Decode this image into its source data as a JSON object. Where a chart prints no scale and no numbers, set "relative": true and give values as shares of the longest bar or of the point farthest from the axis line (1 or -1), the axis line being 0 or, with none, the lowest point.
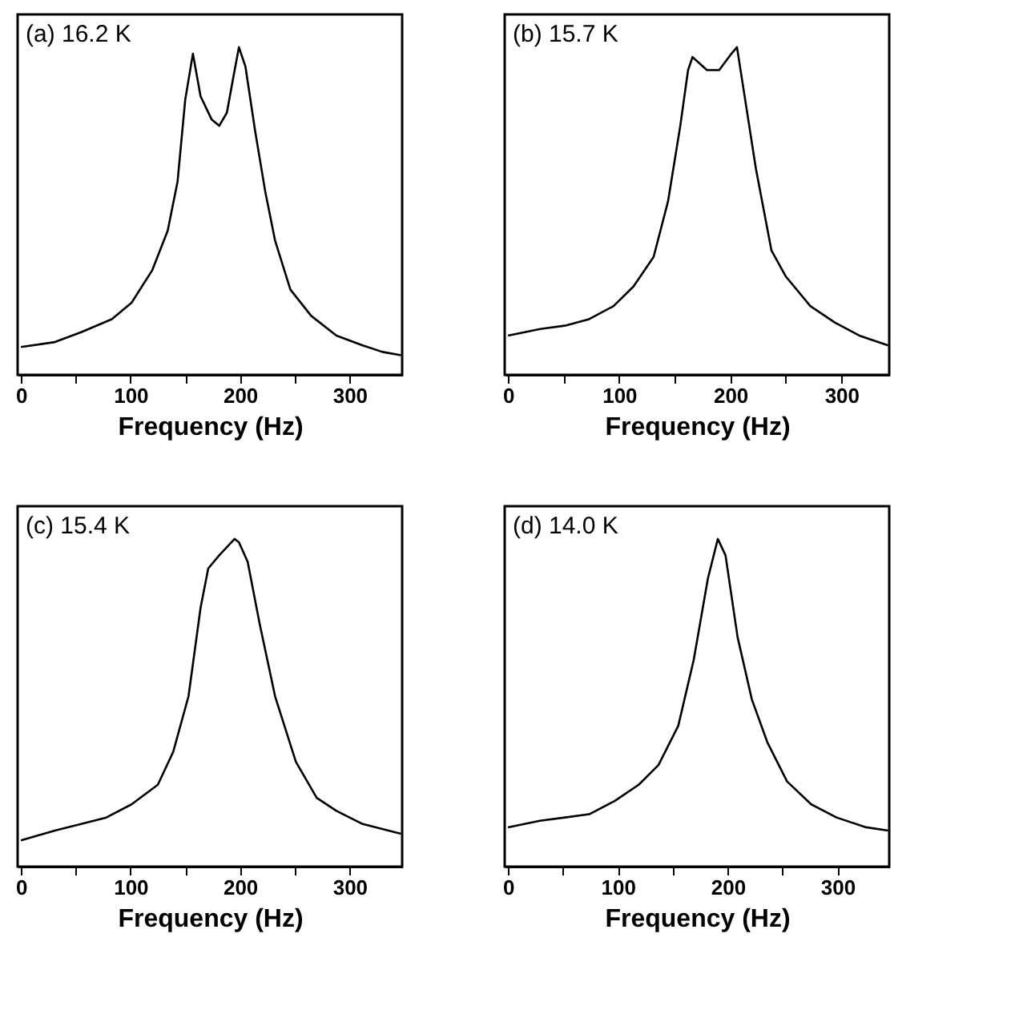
{
  "chart_data": [
    {
      "type": "line",
      "title": "(a) 16.2 K",
      "xlabel": "Frequency (Hz)",
      "relative": true,
      "grid": false,
      "xlim": [
        -3,
        348
      ],
      "xticks": [
        0,
        {
          "value": 50,
          "label": null
        },
        100,
        {
          "value": 150,
          "label": null
        },
        200,
        {
          "value": 250,
          "label": null
        },
        300
      ],
      "x": [
        0,
        31,
        55,
        83,
        101,
        120,
        134,
        143,
        150,
        157,
        164,
        174,
        181,
        188,
        194,
        199,
        205,
        214,
        223,
        232,
        246,
        265,
        288,
        312,
        330,
        347
      ],
      "series": [
        {
          "color": "#000000",
          "values": [
            0.085,
            0.1,
            0.13,
            0.17,
            0.22,
            0.32,
            0.44,
            0.59,
            0.84,
            0.98,
            0.85,
            0.78,
            0.76,
            0.8,
            0.91,
            1.0,
            0.94,
            0.74,
            0.56,
            0.41,
            0.26,
            0.18,
            0.12,
            0.09,
            0.07,
            0.06
          ]
        }
      ]
    },
    {
      "type": "line",
      "title": "(b) 15.7 K",
      "xlabel": "Frequency (Hz)",
      "relative": true,
      "grid": false,
      "xlim": [
        -3,
        343
      ],
      "xticks": [
        0,
        {
          "value": 50,
          "label": null
        },
        100,
        {
          "value": 150,
          "label": null
        },
        200,
        {
          "value": 250,
          "label": null
        },
        300
      ],
      "x": [
        0,
        29,
        51,
        73,
        95,
        113,
        131,
        144,
        155,
        162,
        166,
        179,
        190,
        201,
        206,
        212,
        223,
        237,
        250,
        272,
        294,
        316,
        342
      ],
      "series": [
        {
          "color": "#000000",
          "values": [
            0.12,
            0.14,
            0.15,
            0.17,
            0.21,
            0.27,
            0.36,
            0.53,
            0.76,
            0.93,
            0.97,
            0.93,
            0.93,
            0.98,
            1.0,
            0.87,
            0.63,
            0.38,
            0.3,
            0.21,
            0.16,
            0.12,
            0.09
          ]
        }
      ]
    },
    {
      "type": "line",
      "title": "(c) 15.4 K",
      "xlabel": "Frequency (Hz)",
      "relative": true,
      "grid": false,
      "xlim": [
        -3,
        348
      ],
      "xticks": [
        0,
        {
          "value": 50,
          "label": null
        },
        100,
        {
          "value": 150,
          "label": null
        },
        200,
        {
          "value": 250,
          "label": null
        },
        300
      ],
      "x": [
        0,
        31,
        55,
        78,
        101,
        125,
        139,
        153,
        164,
        171,
        181,
        195,
        199,
        207,
        218,
        232,
        251,
        270,
        288,
        312,
        347
      ],
      "series": [
        {
          "color": "#000000",
          "values": [
            0.08,
            0.11,
            0.13,
            0.15,
            0.19,
            0.25,
            0.35,
            0.52,
            0.79,
            0.91,
            0.95,
            1.0,
            0.99,
            0.93,
            0.74,
            0.52,
            0.32,
            0.21,
            0.17,
            0.13,
            0.1
          ]
        }
      ]
    },
    {
      "type": "line",
      "title": "(d) 14.0 K",
      "xlabel": "Frequency (Hz)",
      "relative": true,
      "grid": false,
      "xlim": [
        -3,
        347
      ],
      "xticks": [
        0,
        {
          "value": 50,
          "label": null
        },
        100,
        {
          "value": 150,
          "label": null
        },
        200,
        {
          "value": 250,
          "label": null
        },
        300
      ],
      "x": [
        0,
        29,
        52,
        74,
        97,
        119,
        137,
        155,
        169,
        182,
        191,
        198,
        209,
        222,
        236,
        254,
        276,
        299,
        326,
        346
      ],
      "series": [
        {
          "color": "#000000",
          "values": [
            0.12,
            0.14,
            0.15,
            0.16,
            0.2,
            0.25,
            0.31,
            0.43,
            0.63,
            0.88,
            1.0,
            0.95,
            0.7,
            0.51,
            0.38,
            0.26,
            0.19,
            0.15,
            0.12,
            0.11
          ]
        }
      ]
    }
  ]
}
